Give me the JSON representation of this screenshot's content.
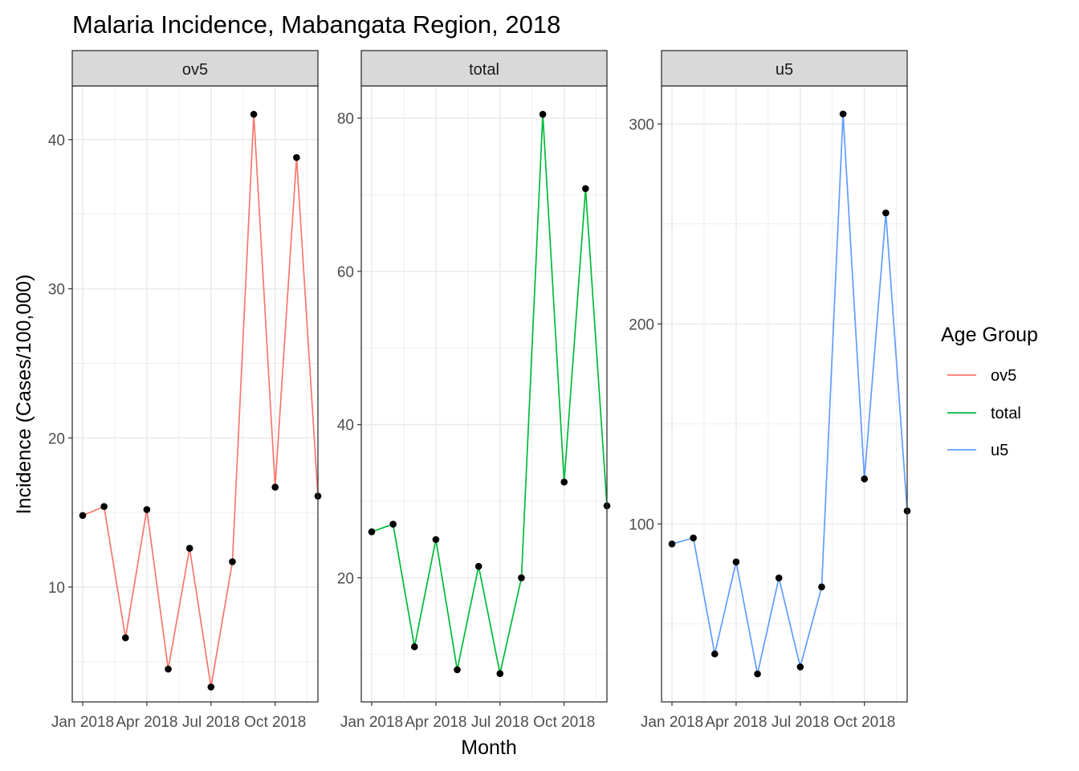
{
  "chart_data": {
    "type": "line",
    "title": "Malaria Incidence, Mabangata Region, 2018",
    "xlabel": "Month",
    "ylabel": "Incidence (Cases/100,000)",
    "x_months": [
      "Jan 2018",
      "Feb 2018",
      "Mar 2018",
      "Apr 2018",
      "May 2018",
      "Jun 2018",
      "Jul 2018",
      "Aug 2018",
      "Sep 2018",
      "Oct 2018",
      "Nov 2018",
      "Dec 2018"
    ],
    "x_tick_labels": [
      "Jan 2018",
      "Apr 2018",
      "Jul 2018",
      "Oct 2018"
    ],
    "legend": {
      "title": "Age Group",
      "position": "right"
    },
    "grid": true,
    "panels": [
      {
        "strip": "ov5",
        "color": "#F8766D",
        "values": [
          14.8,
          15.4,
          6.6,
          15.2,
          4.5,
          12.6,
          3.3,
          11.7,
          41.7,
          16.7,
          38.8,
          16.1
        ],
        "ylim": [
          2.3,
          43.6
        ],
        "yticks": [
          10,
          20,
          30,
          40
        ],
        "y_tick_labels": [
          "10",
          "20",
          "30",
          "40"
        ]
      },
      {
        "strip": "total",
        "color": "#00BA38",
        "values": [
          26.0,
          27.0,
          11.0,
          25.0,
          8.0,
          21.5,
          7.5,
          20.0,
          80.5,
          32.5,
          70.8,
          29.4
        ],
        "ylim": [
          3.8,
          84.2
        ],
        "yticks": [
          20,
          40,
          60,
          80
        ],
        "y_tick_labels": [
          "20",
          "40",
          "60",
          "80"
        ]
      },
      {
        "strip": "u5",
        "color": "#619CFF",
        "values": [
          90.0,
          93.0,
          35.0,
          81.0,
          25.0,
          73.0,
          28.5,
          68.5,
          305.0,
          122.5,
          255.5,
          106.5
        ],
        "ylim": [
          11.0,
          319.0
        ],
        "yticks": [
          100,
          200,
          300
        ],
        "y_tick_labels": [
          "100",
          "200",
          "300"
        ]
      }
    ]
  }
}
